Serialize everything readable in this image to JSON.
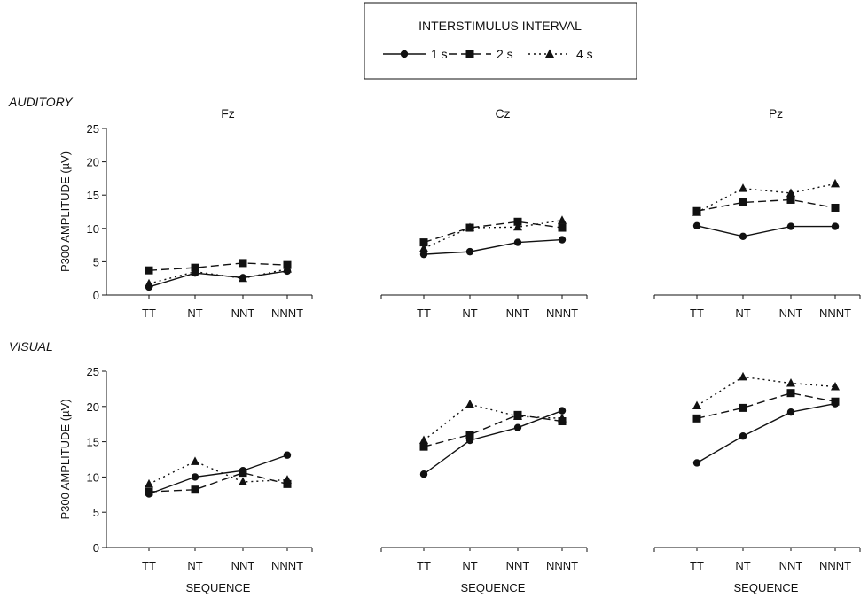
{
  "legend": {
    "title": "INTERSTIMULUS INTERVAL",
    "items": [
      {
        "label": "1 s",
        "marker": "circle",
        "dash": "solid"
      },
      {
        "label": "2 s",
        "marker": "square",
        "dash": "dashed"
      },
      {
        "label": "4 s",
        "marker": "triangle",
        "dash": "dotted"
      }
    ]
  },
  "rows": [
    {
      "label": "AUDITORY"
    },
    {
      "label": "VISUAL"
    }
  ],
  "ylabel": "P300 AMPLITUDE (µV)",
  "xlabel": "SEQUENCE",
  "colors": {
    "ink": "#111111"
  },
  "chart_data": [
    {
      "type": "line",
      "modality": "AUDITORY",
      "title": "Fz",
      "categories": [
        "TT",
        "NT",
        "NNT",
        "NNNT"
      ],
      "ylim": [
        0,
        25
      ],
      "yticks": [
        0,
        5,
        10,
        15,
        20,
        25
      ],
      "series": [
        {
          "name": "1 s",
          "values": [
            1.2,
            3.3,
            2.6,
            3.6
          ]
        },
        {
          "name": "2 s",
          "values": [
            3.7,
            4.1,
            4.8,
            4.5
          ]
        },
        {
          "name": "4 s",
          "values": [
            1.7,
            3.5,
            2.5,
            3.9
          ]
        }
      ]
    },
    {
      "type": "line",
      "modality": "AUDITORY",
      "title": "Cz",
      "categories": [
        "TT",
        "NT",
        "NNT",
        "NNNT"
      ],
      "ylim": [
        0,
        25
      ],
      "yticks": [
        0,
        5,
        10,
        15,
        20,
        25
      ],
      "series": [
        {
          "name": "1 s",
          "values": [
            6.1,
            6.5,
            7.9,
            8.3
          ]
        },
        {
          "name": "2 s",
          "values": [
            7.9,
            10.1,
            11.0,
            10.1
          ]
        },
        {
          "name": "4 s",
          "values": [
            7.0,
            10.1,
            10.2,
            11.2
          ]
        }
      ]
    },
    {
      "type": "line",
      "modality": "AUDITORY",
      "title": "Pz",
      "categories": [
        "TT",
        "NT",
        "NNT",
        "NNNT"
      ],
      "ylim": [
        0,
        25
      ],
      "yticks": [
        0,
        5,
        10,
        15,
        20,
        25
      ],
      "series": [
        {
          "name": "1 s",
          "values": [
            10.4,
            8.8,
            10.3,
            10.3
          ]
        },
        {
          "name": "2 s",
          "values": [
            12.6,
            13.9,
            14.3,
            13.1
          ]
        },
        {
          "name": "4 s",
          "values": [
            12.4,
            16.0,
            15.3,
            16.7
          ]
        }
      ]
    },
    {
      "type": "line",
      "modality": "VISUAL",
      "title": "",
      "categories": [
        "TT",
        "NT",
        "NNT",
        "NNNT"
      ],
      "ylim": [
        0,
        25
      ],
      "yticks": [
        0,
        5,
        10,
        15,
        20,
        25
      ],
      "series": [
        {
          "name": "1 s",
          "values": [
            7.6,
            10.0,
            10.9,
            13.1
          ]
        },
        {
          "name": "2 s",
          "values": [
            7.9,
            8.2,
            10.6,
            9.0
          ]
        },
        {
          "name": "4 s",
          "values": [
            9.0,
            12.2,
            9.3,
            9.6
          ]
        }
      ]
    },
    {
      "type": "line",
      "modality": "VISUAL",
      "title": "",
      "categories": [
        "TT",
        "NT",
        "NNT",
        "NNNT"
      ],
      "ylim": [
        0,
        25
      ],
      "yticks": [
        0,
        5,
        10,
        15,
        20,
        25
      ],
      "series": [
        {
          "name": "1 s",
          "values": [
            10.4,
            15.2,
            17.0,
            19.4
          ]
        },
        {
          "name": "2 s",
          "values": [
            14.3,
            16.0,
            18.8,
            17.9
          ]
        },
        {
          "name": "4 s",
          "values": [
            15.2,
            20.3,
            18.6,
            18.3
          ]
        }
      ]
    },
    {
      "type": "line",
      "modality": "VISUAL",
      "title": "",
      "categories": [
        "TT",
        "NT",
        "NNT",
        "NNNT"
      ],
      "ylim": [
        0,
        25
      ],
      "yticks": [
        0,
        5,
        10,
        15,
        20,
        25
      ],
      "series": [
        {
          "name": "1 s",
          "values": [
            12.0,
            15.8,
            19.2,
            20.4
          ]
        },
        {
          "name": "2 s",
          "values": [
            18.3,
            19.8,
            21.9,
            20.7
          ]
        },
        {
          "name": "4 s",
          "values": [
            20.1,
            24.2,
            23.3,
            22.8
          ]
        }
      ]
    }
  ]
}
